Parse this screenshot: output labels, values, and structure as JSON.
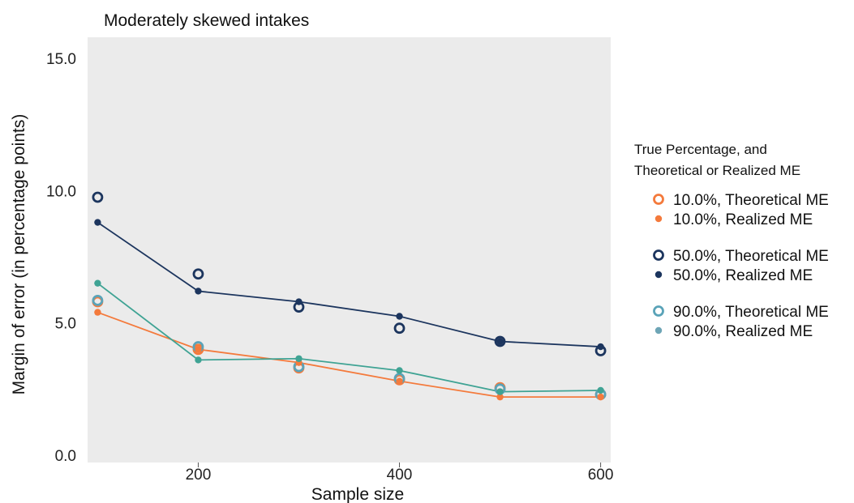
{
  "chart_data": {
    "type": "line",
    "title": "Moderately skewed intakes",
    "xlabel": "Sample size",
    "ylabel": "Margin of error (in percentage points)",
    "xlim": [
      90,
      610
    ],
    "ylim": [
      0,
      15
    ],
    "xticks": [
      200,
      400,
      600
    ],
    "xtick_labels": [
      "200",
      "400",
      "600"
    ],
    "yticks": [
      0,
      5,
      10,
      15
    ],
    "ytick_labels": [
      "0.0",
      "5.0",
      "10.0",
      "15.0"
    ],
    "grid": false,
    "legend_placement": "right",
    "legend_title": [
      "True Percentage, and",
      "Theoretical or Realized ME"
    ],
    "background_color": "#ebebeb",
    "series": [
      {
        "name": "10.0%, Theoretical ME",
        "kind": "theoretical",
        "color": "#f47a3c",
        "x": [
          100,
          200,
          300,
          400,
          500,
          600
        ],
        "y": [
          5.8,
          4.0,
          3.3,
          2.85,
          2.55,
          2.3
        ]
      },
      {
        "name": "10.0%, Realized ME",
        "kind": "realized",
        "color": "#f47a3c",
        "line_color": "#f47a3c",
        "x": [
          100,
          200,
          300,
          400,
          500,
          600
        ],
        "y": [
          5.4,
          4.0,
          3.5,
          2.8,
          2.2,
          2.2
        ]
      },
      {
        "name": "50.0%, Theoretical ME",
        "kind": "theoretical",
        "color": "#1c355e",
        "x": [
          100,
          200,
          300,
          400,
          500,
          600
        ],
        "y": [
          9.75,
          6.85,
          5.6,
          4.8,
          4.3,
          3.95
        ]
      },
      {
        "name": "50.0%, Realized ME",
        "kind": "realized",
        "color": "#1c355e",
        "line_color": "#1c355e",
        "x": [
          100,
          200,
          300,
          400,
          500,
          600
        ],
        "y": [
          8.8,
          6.2,
          5.8,
          5.25,
          4.3,
          4.1
        ]
      },
      {
        "name": "90.0%, Theoretical ME",
        "kind": "theoretical",
        "color": "#5aa3b8",
        "x": [
          100,
          200,
          300,
          400,
          500,
          600
        ],
        "y": [
          5.85,
          4.1,
          3.35,
          2.9,
          2.5,
          2.3
        ]
      },
      {
        "name": "90.0%, Realized ME",
        "kind": "realized",
        "color": "#6ea5b6",
        "line_color": "#3fa394",
        "point_color": "#3fa394",
        "x": [
          100,
          200,
          300,
          400,
          500,
          600
        ],
        "y": [
          6.5,
          3.6,
          3.65,
          3.2,
          2.4,
          2.45
        ]
      }
    ]
  }
}
